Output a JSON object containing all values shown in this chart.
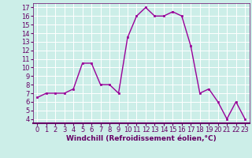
{
  "x": [
    0,
    1,
    2,
    3,
    4,
    5,
    6,
    7,
    8,
    9,
    10,
    11,
    12,
    13,
    14,
    15,
    16,
    17,
    18,
    19,
    20,
    21,
    22,
    23
  ],
  "y": [
    6.5,
    7.0,
    7.0,
    7.0,
    7.5,
    10.5,
    10.5,
    8.0,
    8.0,
    7.0,
    13.5,
    16.0,
    17.0,
    16.0,
    16.0,
    16.5,
    16.0,
    12.5,
    7.0,
    7.5,
    6.0,
    4.0,
    6.0,
    4.0
  ],
  "line_color": "#990099",
  "marker": "s",
  "marker_size": 2.0,
  "xlabel": "Windchill (Refroidissement éolien,°C)",
  "xlabel_fontsize": 6.5,
  "ylim": [
    3.5,
    17.5
  ],
  "xlim": [
    -0.5,
    23.5
  ],
  "yticks": [
    4,
    5,
    6,
    7,
    8,
    9,
    10,
    11,
    12,
    13,
    14,
    15,
    16,
    17
  ],
  "xticks": [
    0,
    1,
    2,
    3,
    4,
    5,
    6,
    7,
    8,
    9,
    10,
    11,
    12,
    13,
    14,
    15,
    16,
    17,
    18,
    19,
    20,
    21,
    22,
    23
  ],
  "background_color": "#cceee8",
  "grid_color": "#ffffff",
  "tick_fontsize": 6.0,
  "line_width": 1.0,
  "xlabel_color": "#660066",
  "tick_color": "#660066",
  "spine_color": "#660066"
}
